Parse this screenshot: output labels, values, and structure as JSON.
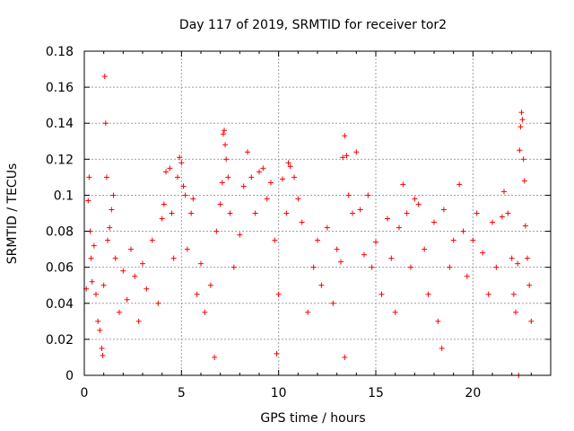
{
  "chart_data": {
    "type": "scatter",
    "title": "Day 117 of 2019, SRMTID for receiver tor2",
    "xlabel": "GPS time / hours",
    "ylabel": "SRMTID / TECUs",
    "xlim": [
      0,
      24
    ],
    "ylim": [
      0,
      0.18
    ],
    "xticks": [
      "0",
      "5",
      "10",
      "15",
      "20"
    ],
    "yticks": [
      "0",
      "0.02",
      "0.04",
      "0.06",
      "0.08",
      "0.1",
      "0.12",
      "0.14",
      "0.16",
      "0.18"
    ],
    "grid": true,
    "marker": "+",
    "color": "#ff0000",
    "series": [
      {
        "values": [
          [
            0.1,
            0.048
          ],
          [
            0.2,
            0.097
          ],
          [
            0.25,
            0.11
          ],
          [
            0.3,
            0.08
          ],
          [
            0.35,
            0.065
          ],
          [
            0.4,
            0.052
          ],
          [
            0.5,
            0.072
          ],
          [
            0.6,
            0.045
          ],
          [
            0.7,
            0.03
          ],
          [
            0.8,
            0.025
          ],
          [
            0.9,
            0.015
          ],
          [
            0.95,
            0.011
          ],
          [
            1.0,
            0.05
          ],
          [
            1.05,
            0.166
          ],
          [
            1.1,
            0.14
          ],
          [
            1.15,
            0.11
          ],
          [
            1.2,
            0.075
          ],
          [
            1.3,
            0.082
          ],
          [
            1.4,
            0.092
          ],
          [
            1.5,
            0.1
          ],
          [
            1.6,
            0.065
          ],
          [
            1.8,
            0.035
          ],
          [
            2.0,
            0.058
          ],
          [
            2.2,
            0.042
          ],
          [
            2.4,
            0.07
          ],
          [
            2.6,
            0.055
          ],
          [
            2.8,
            0.03
          ],
          [
            3.0,
            0.062
          ],
          [
            3.2,
            0.048
          ],
          [
            3.5,
            0.075
          ],
          [
            3.8,
            0.04
          ],
          [
            4.0,
            0.087
          ],
          [
            4.1,
            0.095
          ],
          [
            4.2,
            0.113
          ],
          [
            4.4,
            0.115
          ],
          [
            4.5,
            0.09
          ],
          [
            4.6,
            0.065
          ],
          [
            4.8,
            0.11
          ],
          [
            4.9,
            0.121
          ],
          [
            5.0,
            0.118
          ],
          [
            5.1,
            0.105
          ],
          [
            5.2,
            0.1
          ],
          [
            5.3,
            0.07
          ],
          [
            5.5,
            0.09
          ],
          [
            5.6,
            0.098
          ],
          [
            5.8,
            0.045
          ],
          [
            6.0,
            0.062
          ],
          [
            6.2,
            0.035
          ],
          [
            6.5,
            0.05
          ],
          [
            6.7,
            0.01
          ],
          [
            6.8,
            0.08
          ],
          [
            7.0,
            0.095
          ],
          [
            7.1,
            0.107
          ],
          [
            7.15,
            0.134
          ],
          [
            7.2,
            0.136
          ],
          [
            7.25,
            0.128
          ],
          [
            7.3,
            0.12
          ],
          [
            7.4,
            0.11
          ],
          [
            7.5,
            0.09
          ],
          [
            7.7,
            0.06
          ],
          [
            8.0,
            0.078
          ],
          [
            8.2,
            0.105
          ],
          [
            8.4,
            0.124
          ],
          [
            8.6,
            0.11
          ],
          [
            8.8,
            0.09
          ],
          [
            9.0,
            0.113
          ],
          [
            9.2,
            0.115
          ],
          [
            9.4,
            0.098
          ],
          [
            9.6,
            0.107
          ],
          [
            9.8,
            0.075
          ],
          [
            9.9,
            0.012
          ],
          [
            10.0,
            0.045
          ],
          [
            10.2,
            0.109
          ],
          [
            10.4,
            0.09
          ],
          [
            10.5,
            0.118
          ],
          [
            10.6,
            0.116
          ],
          [
            10.8,
            0.11
          ],
          [
            11.0,
            0.098
          ],
          [
            11.2,
            0.085
          ],
          [
            11.5,
            0.035
          ],
          [
            11.8,
            0.06
          ],
          [
            12.0,
            0.075
          ],
          [
            12.2,
            0.05
          ],
          [
            12.5,
            0.082
          ],
          [
            12.8,
            0.04
          ],
          [
            13.0,
            0.07
          ],
          [
            13.2,
            0.063
          ],
          [
            13.3,
            0.121
          ],
          [
            13.4,
            0.133
          ],
          [
            13.5,
            0.122
          ],
          [
            13.6,
            0.1
          ],
          [
            13.4,
            0.01
          ],
          [
            13.8,
            0.09
          ],
          [
            14.0,
            0.124
          ],
          [
            14.2,
            0.092
          ],
          [
            14.4,
            0.067
          ],
          [
            14.6,
            0.1
          ],
          [
            14.8,
            0.06
          ],
          [
            15.0,
            0.074
          ],
          [
            15.3,
            0.045
          ],
          [
            15.6,
            0.087
          ],
          [
            15.8,
            0.065
          ],
          [
            16.0,
            0.035
          ],
          [
            16.2,
            0.082
          ],
          [
            16.4,
            0.106
          ],
          [
            16.6,
            0.09
          ],
          [
            16.8,
            0.06
          ],
          [
            17.0,
            0.098
          ],
          [
            17.2,
            0.095
          ],
          [
            17.5,
            0.07
          ],
          [
            17.7,
            0.045
          ],
          [
            18.0,
            0.085
          ],
          [
            18.2,
            0.03
          ],
          [
            18.4,
            0.015
          ],
          [
            18.5,
            0.092
          ],
          [
            18.8,
            0.06
          ],
          [
            19.0,
            0.075
          ],
          [
            19.3,
            0.106
          ],
          [
            19.5,
            0.08
          ],
          [
            19.7,
            0.055
          ],
          [
            20.0,
            0.075
          ],
          [
            20.2,
            0.09
          ],
          [
            20.5,
            0.068
          ],
          [
            20.8,
            0.045
          ],
          [
            21.0,
            0.085
          ],
          [
            21.2,
            0.06
          ],
          [
            21.5,
            0.088
          ],
          [
            21.6,
            0.102
          ],
          [
            21.8,
            0.09
          ],
          [
            22.0,
            0.065
          ],
          [
            22.1,
            0.045
          ],
          [
            22.2,
            0.035
          ],
          [
            22.3,
            0.062
          ],
          [
            22.35,
            0.0
          ],
          [
            22.4,
            0.125
          ],
          [
            22.45,
            0.138
          ],
          [
            22.5,
            0.146
          ],
          [
            22.55,
            0.142
          ],
          [
            22.6,
            0.12
          ],
          [
            22.65,
            0.108
          ],
          [
            22.7,
            0.083
          ],
          [
            22.8,
            0.065
          ],
          [
            22.9,
            0.05
          ],
          [
            23.0,
            0.03
          ]
        ]
      }
    ]
  }
}
